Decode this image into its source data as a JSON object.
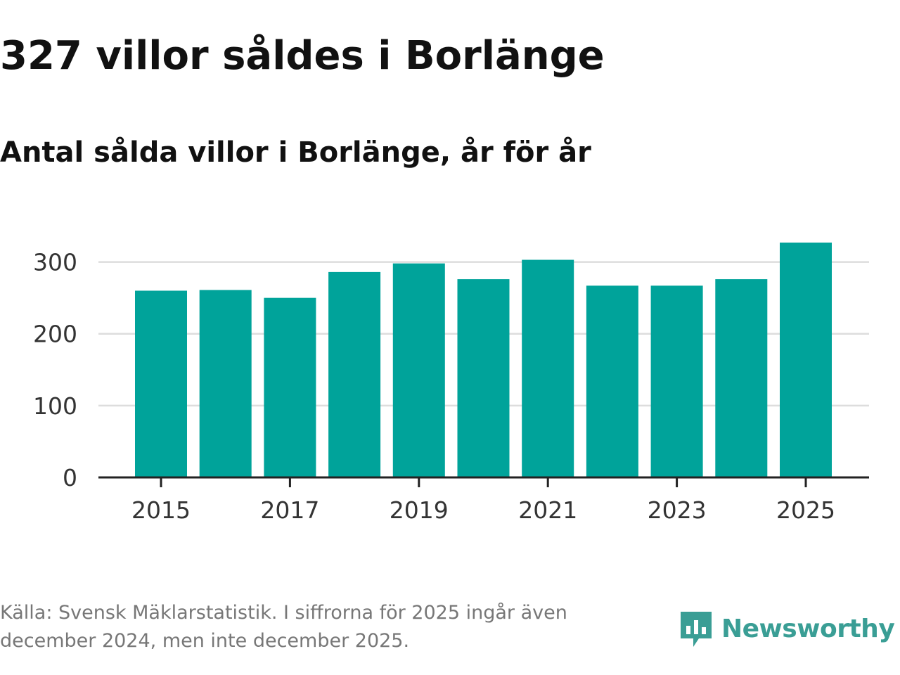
{
  "header": {
    "title": "327 villor såldes i Borlänge",
    "subtitle": "Antal sålda villor i Borlänge, år för år"
  },
  "footer": {
    "source": "Källa: Svensk Mäklarstatistik. I siffrorna för 2025 ingår även december 2024, men inte december 2025."
  },
  "logo": {
    "name": "Newsworthy",
    "icon": "bar-chart-logo-icon"
  },
  "colors": {
    "bar": "#00a39a",
    "grid": "#dddddd",
    "axis": "#222222",
    "logo": "#3a9e95"
  },
  "chart_data": {
    "type": "bar",
    "title": "Antal sålda villor i Borlänge, år för år",
    "xlabel": "",
    "ylabel": "",
    "categories": [
      "2015",
      "2016",
      "2017",
      "2018",
      "2019",
      "2020",
      "2021",
      "2022",
      "2023",
      "2024",
      "2025"
    ],
    "values": [
      260,
      261,
      250,
      286,
      298,
      276,
      303,
      267,
      267,
      276,
      327
    ],
    "ylim": [
      0,
      327
    ],
    "yticks": [
      0,
      100,
      200,
      300
    ],
    "xtick_labels": [
      "2015",
      "2017",
      "2019",
      "2021",
      "2023",
      "2025"
    ],
    "grid": true
  }
}
